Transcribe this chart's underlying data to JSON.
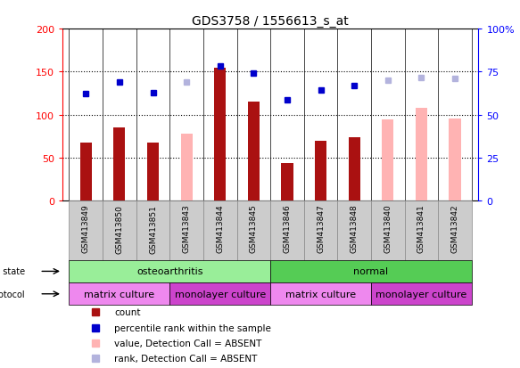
{
  "title": "GDS3758 / 1556613_s_at",
  "samples": [
    "GSM413849",
    "GSM413850",
    "GSM413851",
    "GSM413843",
    "GSM413844",
    "GSM413845",
    "GSM413846",
    "GSM413847",
    "GSM413848",
    "GSM413840",
    "GSM413841",
    "GSM413842"
  ],
  "count_values": [
    68,
    85,
    68,
    null,
    155,
    115,
    44,
    70,
    74,
    null,
    null,
    null
  ],
  "count_absent_values": [
    null,
    null,
    null,
    78,
    null,
    null,
    null,
    null,
    null,
    95,
    108,
    96
  ],
  "rank_values": [
    125,
    138,
    126,
    null,
    157,
    148,
    117,
    129,
    134,
    null,
    null,
    null
  ],
  "rank_absent_values": [
    null,
    null,
    null,
    138,
    null,
    null,
    null,
    null,
    null,
    140,
    143,
    142
  ],
  "ylim_left": [
    0,
    200
  ],
  "ylim_right": [
    0,
    100
  ],
  "yticks_left": [
    0,
    50,
    100,
    150,
    200
  ],
  "yticks_right": [
    0,
    25,
    50,
    75,
    100
  ],
  "ytick_labels_left": [
    "0",
    "50",
    "100",
    "150",
    "200"
  ],
  "ytick_labels_right": [
    "0",
    "25",
    "50",
    "75",
    "100%"
  ],
  "color_count": "#aa1111",
  "color_rank": "#0000cc",
  "color_count_absent": "#ffb3b3",
  "color_rank_absent": "#b3b3dd",
  "disease_state_groups": [
    {
      "label": "osteoarthritis",
      "start": 0,
      "end": 6,
      "color": "#99ee99"
    },
    {
      "label": "normal",
      "start": 6,
      "end": 12,
      "color": "#55cc55"
    }
  ],
  "growth_protocol_groups": [
    {
      "label": "matrix culture",
      "start": 0,
      "end": 3,
      "color": "#ee88ee"
    },
    {
      "label": "monolayer culture",
      "start": 3,
      "end": 6,
      "color": "#cc44cc"
    },
    {
      "label": "matrix culture",
      "start": 6,
      "end": 9,
      "color": "#ee88ee"
    },
    {
      "label": "monolayer culture",
      "start": 9,
      "end": 12,
      "color": "#cc44cc"
    }
  ],
  "legend_items": [
    {
      "label": "count",
      "color": "#aa1111"
    },
    {
      "label": "percentile rank within the sample",
      "color": "#0000cc"
    },
    {
      "label": "value, Detection Call = ABSENT",
      "color": "#ffb3b3"
    },
    {
      "label": "rank, Detection Call = ABSENT",
      "color": "#b3b3dd"
    }
  ],
  "bg_color": "#ffffff",
  "plot_bg_color": "#ffffff",
  "n_samples": 12,
  "bar_width": 0.35,
  "sample_box_color": "#cccccc",
  "sample_box_edge": "#888888"
}
